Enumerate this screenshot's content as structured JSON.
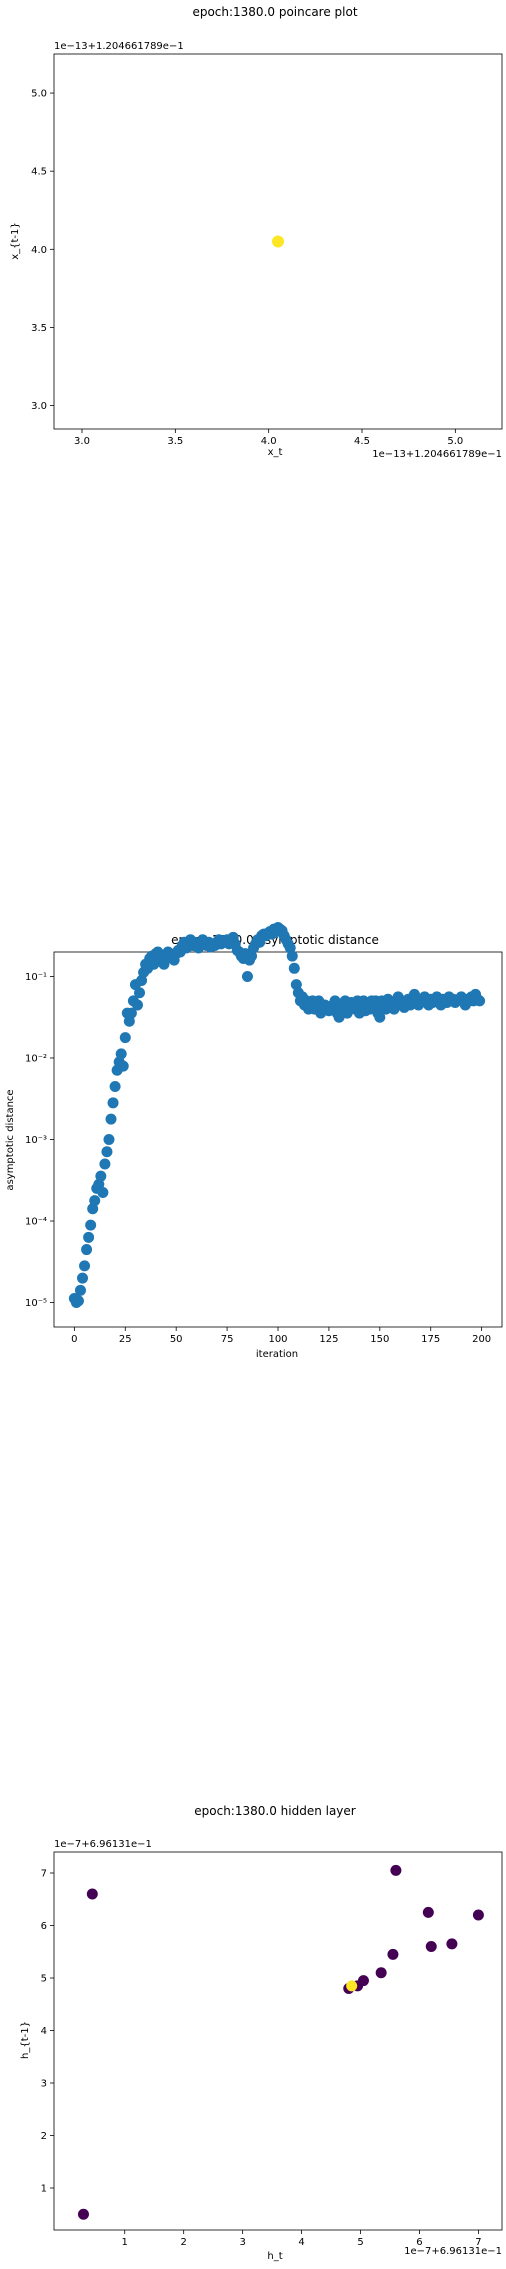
{
  "chart_data": [
    {
      "type": "scatter",
      "title": "epoch:1380.0 poincare plot",
      "xlabel": "x_t",
      "ylabel": "x_{t-1}",
      "x_offset_text": "1e−13+1.204661789e−1",
      "y_offset_text": "1e−13+1.204661789e−1",
      "xlim": [
        2.85,
        5.25
      ],
      "ylim": [
        2.85,
        5.25
      ],
      "x_ticks": [
        "3.0",
        "3.5",
        "4.0",
        "4.5",
        "5.0"
      ],
      "y_ticks": [
        "3.0",
        "3.5",
        "4.0",
        "4.5",
        "5.0"
      ],
      "points": [
        {
          "x": 4.05,
          "y": 4.05
        }
      ],
      "marker_color": "#fde725"
    },
    {
      "type": "scatter",
      "title": "epoch:1380.0 asymptotic distance",
      "xlabel": "iteration",
      "ylabel": "asymptotic distance",
      "y_scale": "log",
      "xlim": [
        -10,
        210
      ],
      "ylim_exp": [
        -5.3,
        -0.7
      ],
      "x_ticks": [
        "0",
        "25",
        "50",
        "75",
        "100",
        "125",
        "150",
        "175",
        "200"
      ],
      "y_ticks": [
        "10⁻⁵",
        "10⁻⁴",
        "10⁻³",
        "10⁻²",
        "10⁻¹"
      ],
      "marker_color": "#1f77b4",
      "x_range": [
        0,
        199
      ],
      "log10_y_samples": [
        -4.95,
        -5.0,
        -4.98,
        -4.85,
        -4.7,
        -4.55,
        -4.35,
        -4.2,
        -4.05,
        -3.85,
        -3.75,
        -3.6,
        -3.55,
        -3.45,
        -3.65,
        -3.3,
        -3.15,
        -3.0,
        -2.75,
        -2.55,
        -2.35,
        -2.15,
        -2.05,
        -1.95,
        -2.1,
        -1.75,
        -1.45,
        -1.55,
        -1.45,
        -1.3,
        -1.1,
        -1.35,
        -1.2,
        -1.05,
        -0.95,
        -0.85,
        -0.9,
        -0.78,
        -0.75,
        -0.85,
        -0.72,
        -0.7,
        -0.75,
        -0.8,
        -0.85,
        -0.78,
        -0.7,
        -0.72,
        -0.75,
        -0.8,
        -0.72,
        -0.68,
        -0.7,
        -0.62,
        -0.58,
        -0.65,
        -0.6,
        -0.55,
        -0.62,
        -0.58,
        -0.6,
        -0.65,
        -0.58,
        -0.55,
        -0.6,
        -0.62,
        -0.58,
        -0.64,
        -0.6,
        -0.62,
        -0.58,
        -0.55,
        -0.6,
        -0.56,
        -0.58,
        -0.55,
        -0.6,
        -0.58,
        -0.52,
        -0.6,
        -0.68,
        -0.7,
        -0.75,
        -0.78,
        -0.72,
        -1.0,
        -0.8,
        -0.75,
        -0.65,
        -0.6,
        -0.55,
        -0.58,
        -0.5,
        -0.48,
        -0.5,
        -0.47,
        -0.45,
        -0.48,
        -0.42,
        -0.45,
        -0.4,
        -0.42,
        -0.44,
        -0.5,
        -0.55,
        -0.6,
        -0.65,
        -0.75,
        -0.9,
        -1.1,
        -1.2,
        -1.3,
        -1.25,
        -1.35,
        -1.3,
        -1.4,
        -1.38,
        -1.3,
        -1.4,
        -1.35,
        -1.3,
        -1.45,
        -1.4,
        -1.35,
        -1.38,
        -1.42,
        -1.4,
        -1.35,
        -1.3,
        -1.45,
        -1.5,
        -1.4,
        -1.35,
        -1.3,
        -1.45,
        -1.4,
        -1.32,
        -1.35,
        -1.4,
        -1.3,
        -1.45,
        -1.38,
        -1.3,
        -1.42,
        -1.35,
        -1.4,
        -1.3,
        -1.38,
        -1.3,
        -1.45,
        -1.5,
        -1.3,
        -1.35,
        -1.4,
        -1.28,
        -1.35,
        -1.32,
        -1.4,
        -1.3,
        -1.25,
        -1.35,
        -1.3,
        -1.38,
        -1.3,
        -1.28,
        -1.35,
        -1.3,
        -1.22,
        -1.3,
        -1.35,
        -1.28,
        -1.3,
        -1.25,
        -1.3,
        -1.35,
        -1.28,
        -1.32,
        -1.3,
        -1.25,
        -1.3,
        -1.35,
        -1.28,
        -1.3,
        -1.32,
        -1.25,
        -1.3,
        -1.28,
        -1.32,
        -1.3,
        -1.28,
        -1.25,
        -1.3,
        -1.35,
        -1.28,
        -1.3,
        -1.25,
        -1.3,
        -1.22,
        -1.28,
        -1.3
      ]
    },
    {
      "type": "scatter",
      "title": "epoch:1380.0 hidden layer",
      "xlabel": "h_t",
      "ylabel": "h_{t-1}",
      "x_offset_text": "1e−7+6.96131e−1",
      "y_offset_text": "1e−7+6.96131e−1",
      "xlim": [
        -0.2,
        7.4
      ],
      "ylim": [
        0.2,
        7.4
      ],
      "x_ticks": [
        "1",
        "2",
        "3",
        "4",
        "5",
        "6",
        "7"
      ],
      "y_ticks": [
        "1",
        "2",
        "3",
        "4",
        "5",
        "6",
        "7"
      ],
      "points": [
        {
          "x": 0.3,
          "y": 0.5,
          "c": "#440154"
        },
        {
          "x": 0.45,
          "y": 6.6,
          "c": "#440154"
        },
        {
          "x": 4.8,
          "y": 4.8,
          "c": "#440154"
        },
        {
          "x": 4.95,
          "y": 4.85,
          "c": "#440154"
        },
        {
          "x": 5.05,
          "y": 4.95,
          "c": "#440154"
        },
        {
          "x": 5.35,
          "y": 5.1,
          "c": "#440154"
        },
        {
          "x": 5.55,
          "y": 5.45,
          "c": "#440154"
        },
        {
          "x": 5.6,
          "y": 7.05,
          "c": "#440154"
        },
        {
          "x": 6.15,
          "y": 6.25,
          "c": "#440154"
        },
        {
          "x": 6.2,
          "y": 5.6,
          "c": "#440154"
        },
        {
          "x": 6.55,
          "y": 5.65,
          "c": "#440154"
        },
        {
          "x": 7.0,
          "y": 6.2,
          "c": "#440154"
        },
        {
          "x": 4.85,
          "y": 4.85,
          "c": "#fde725"
        }
      ]
    }
  ]
}
